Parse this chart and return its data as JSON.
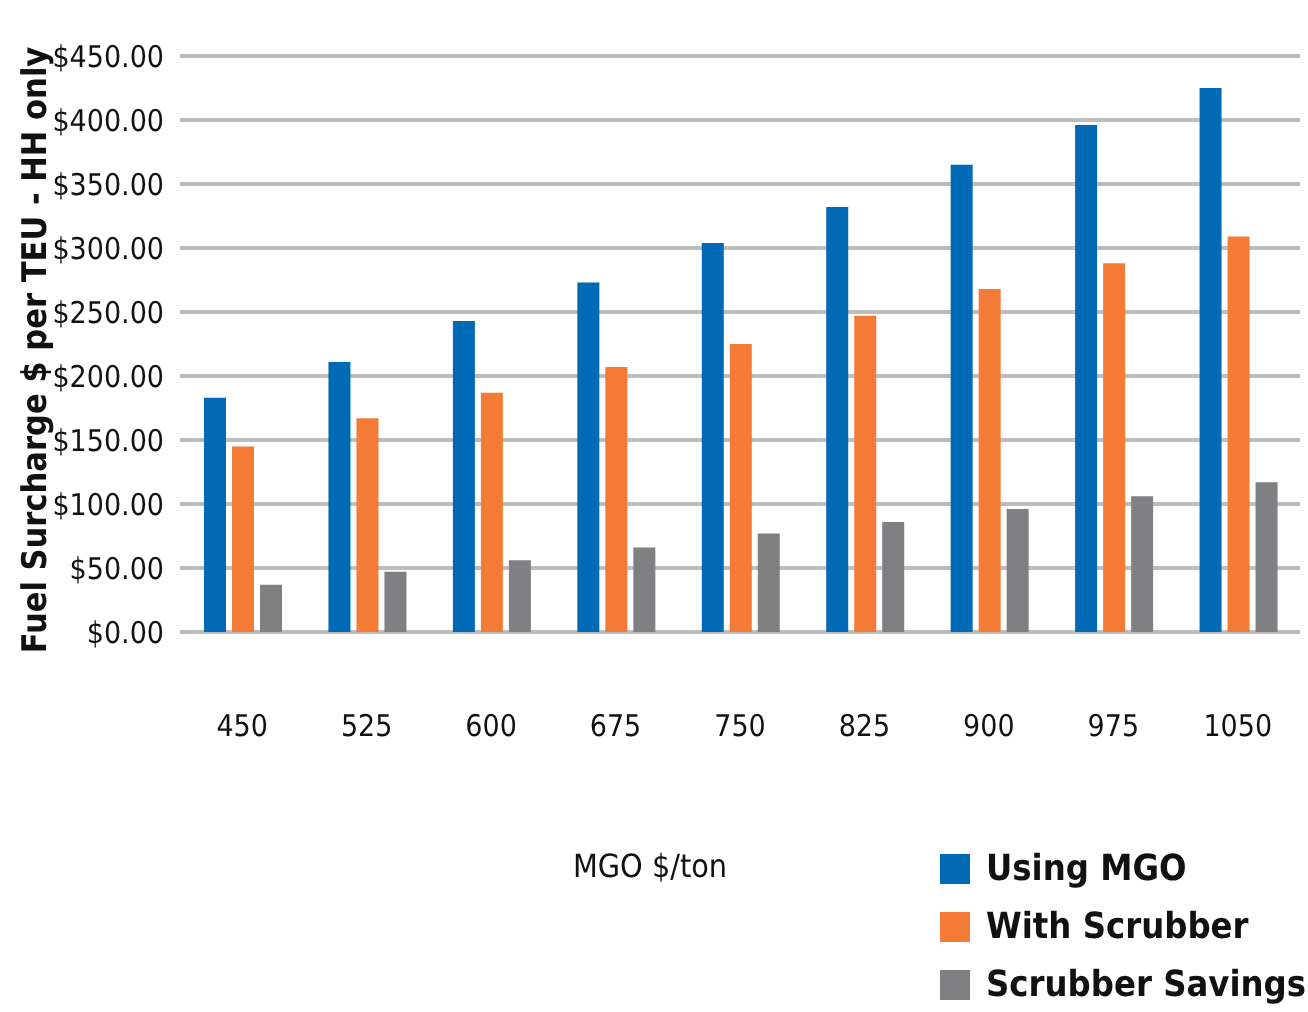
{
  "chart_data": {
    "type": "bar",
    "ylabel": "Fuel Surcharge $ per TEU - HH only",
    "xlabel": "MGO $/ton",
    "categories": [
      "450",
      "525",
      "600",
      "675",
      "750",
      "825",
      "900",
      "975",
      "1050"
    ],
    "series": [
      {
        "name": "Using MGO",
        "color": "#006ab7",
        "values": [
          183,
          211,
          243,
          273,
          304,
          332,
          365,
          396,
          425
        ]
      },
      {
        "name": "With Scrubber",
        "color": "#f47b35",
        "values": [
          145,
          167,
          187,
          207,
          225,
          247,
          268,
          288,
          309
        ]
      },
      {
        "name": "Scrubber Savings",
        "color": "#808083",
        "values": [
          37,
          47,
          56,
          66,
          77,
          86,
          96,
          106,
          117
        ]
      }
    ],
    "ylim": [
      0,
      450
    ],
    "yticks": [
      {
        "value": 0,
        "label": "$0.00"
      },
      {
        "value": 50,
        "label": "$50.00"
      },
      {
        "value": 100,
        "label": "$100.00"
      },
      {
        "value": 150,
        "label": "$150.00"
      },
      {
        "value": 200,
        "label": "$200.00"
      },
      {
        "value": 250,
        "label": "$250.00"
      },
      {
        "value": 300,
        "label": "$300.00"
      },
      {
        "value": 350,
        "label": "$350.00"
      },
      {
        "value": 400,
        "label": "$400.00"
      },
      {
        "value": 450,
        "label": "$450.00"
      }
    ],
    "grid": "y",
    "legend": "bottom right"
  }
}
